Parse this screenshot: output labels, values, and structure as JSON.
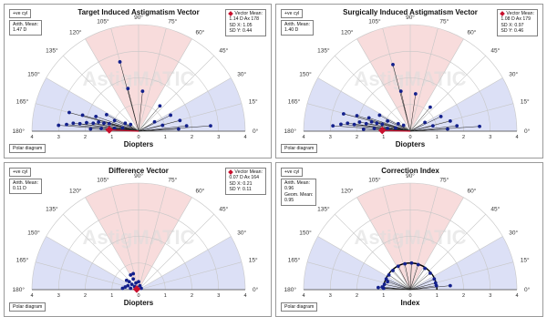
{
  "chart_data": [
    {
      "type": "scatter",
      "title": "Target Induced Astigmatism Vector",
      "xlabel": "Diopters",
      "polar_max": 4,
      "cyl_label": "+ve cyl",
      "left_box": [
        "Arith. Mean:",
        "1.47 D"
      ],
      "right_box": [
        "Vector Mean:",
        "1.14 D Ax 178",
        "SD X: 1.05",
        "SD Y: 0.44"
      ],
      "footer": "Polar diagram",
      "watermark": "AstigMATIC",
      "spokes": true,
      "mean": {
        "x": -1.1,
        "y": 0.05
      },
      "points": [
        {
          "x": -3.0,
          "y": 0.22
        },
        {
          "x": -2.7,
          "y": 0.25
        },
        {
          "x": -2.45,
          "y": 0.3
        },
        {
          "x": -2.2,
          "y": 0.28
        },
        {
          "x": -1.95,
          "y": 0.32
        },
        {
          "x": -1.7,
          "y": 0.3
        },
        {
          "x": -1.5,
          "y": 0.34
        },
        {
          "x": -1.3,
          "y": 0.3
        },
        {
          "x": -1.1,
          "y": 0.28
        },
        {
          "x": -2.6,
          "y": 0.7
        },
        {
          "x": -2.1,
          "y": 0.6
        },
        {
          "x": -1.6,
          "y": 0.55
        },
        {
          "x": -1.2,
          "y": 0.62
        },
        {
          "x": -0.9,
          "y": 0.4
        },
        {
          "x": -0.5,
          "y": 0.3
        },
        {
          "x": -0.3,
          "y": 0.25
        },
        {
          "x": -1.8,
          "y": 0.08
        },
        {
          "x": -1.4,
          "y": 0.1
        },
        {
          "x": -0.9,
          "y": 0.1
        },
        {
          "x": -0.6,
          "y": 0.12
        },
        {
          "x": -0.7,
          "y": 2.6
        },
        {
          "x": -0.4,
          "y": 1.6
        },
        {
          "x": 0.15,
          "y": 1.5
        },
        {
          "x": 0.8,
          "y": 0.95
        },
        {
          "x": 1.2,
          "y": 0.6
        },
        {
          "x": 1.55,
          "y": 0.4
        },
        {
          "x": 0.6,
          "y": 0.35
        },
        {
          "x": 0.9,
          "y": 0.22
        },
        {
          "x": 1.8,
          "y": 0.2
        },
        {
          "x": 2.7,
          "y": 0.2
        },
        {
          "x": 1.5,
          "y": 0.08
        }
      ]
    },
    {
      "type": "scatter",
      "title": "Surgically Induced Astigmatism Vector",
      "xlabel": "Diopters",
      "polar_max": 4,
      "cyl_label": "+ve cyl",
      "left_box": [
        "Arith. Mean:",
        "1.40 D"
      ],
      "right_box": [
        "Vector Mean:",
        "1.08 D Ax 179",
        "SD X: 0.97",
        "SD Y: 0.46"
      ],
      "footer": "Polar diagram",
      "watermark": "AstigMATIC",
      "spokes": true,
      "mean": {
        "x": -1.05,
        "y": 0.03
      },
      "points": [
        {
          "x": -2.9,
          "y": 0.2
        },
        {
          "x": -2.6,
          "y": 0.26
        },
        {
          "x": -2.35,
          "y": 0.3
        },
        {
          "x": -2.1,
          "y": 0.25
        },
        {
          "x": -1.9,
          "y": 0.34
        },
        {
          "x": -1.65,
          "y": 0.28
        },
        {
          "x": -1.45,
          "y": 0.35
        },
        {
          "x": -1.25,
          "y": 0.3
        },
        {
          "x": -1.05,
          "y": 0.26
        },
        {
          "x": -2.5,
          "y": 0.65
        },
        {
          "x": -2.0,
          "y": 0.58
        },
        {
          "x": -1.55,
          "y": 0.5
        },
        {
          "x": -1.15,
          "y": 0.6
        },
        {
          "x": -0.85,
          "y": 0.38
        },
        {
          "x": -0.45,
          "y": 0.28
        },
        {
          "x": -0.25,
          "y": 0.22
        },
        {
          "x": -1.75,
          "y": 0.07
        },
        {
          "x": -1.35,
          "y": 0.1
        },
        {
          "x": -0.85,
          "y": 0.1
        },
        {
          "x": -0.55,
          "y": 0.12
        },
        {
          "x": -0.65,
          "y": 2.5
        },
        {
          "x": -0.35,
          "y": 1.5
        },
        {
          "x": 0.2,
          "y": 1.4
        },
        {
          "x": 0.75,
          "y": 0.9
        },
        {
          "x": 1.15,
          "y": 0.55
        },
        {
          "x": 1.5,
          "y": 0.38
        },
        {
          "x": 0.55,
          "y": 0.33
        },
        {
          "x": 0.85,
          "y": 0.2
        },
        {
          "x": 1.75,
          "y": 0.2
        },
        {
          "x": 2.6,
          "y": 0.18
        },
        {
          "x": 1.4,
          "y": 0.08
        }
      ]
    },
    {
      "type": "scatter",
      "title": "Difference Vector",
      "xlabel": "Diopters",
      "polar_max": 4,
      "cyl_label": "+ve cyl",
      "left_box": [
        "Arith. Mean:",
        "0.11 D"
      ],
      "right_box": [
        "Vector Mean:",
        "0.07 D Ax 164",
        "SD X: 0.21",
        "SD Y: 0.11"
      ],
      "footer": "Polar diagram",
      "watermark": "AstigMATIC",
      "spokes": false,
      "mean": {
        "x": -0.07,
        "y": 0.02
      },
      "points": [
        {
          "x": -0.5,
          "y": 0.1
        },
        {
          "x": -0.4,
          "y": 0.15
        },
        {
          "x": -0.35,
          "y": 0.3
        },
        {
          "x": -0.3,
          "y": 0.05
        },
        {
          "x": -0.25,
          "y": 0.2
        },
        {
          "x": -0.2,
          "y": 0.4
        },
        {
          "x": -0.15,
          "y": 0.12
        },
        {
          "x": -0.1,
          "y": 0.25
        },
        {
          "x": -0.05,
          "y": 0.08
        },
        {
          "x": 0.05,
          "y": 0.15
        },
        {
          "x": 0.1,
          "y": 0.05
        },
        {
          "x": -0.45,
          "y": 0.35
        },
        {
          "x": -0.3,
          "y": 0.55
        },
        {
          "x": -0.6,
          "y": 0.05
        },
        {
          "x": 0.0,
          "y": 0.3
        },
        {
          "x": -0.2,
          "y": 0.6
        }
      ]
    },
    {
      "type": "scatter",
      "title": "Correction Index",
      "xlabel": "Index",
      "polar_max": 4,
      "cyl_label": "+ve cyl",
      "left_box": [
        "Arith. Mean:",
        "0.96",
        "Geom. Mean:",
        "0.95"
      ],
      "right_box": [],
      "footer": "Polar diagram",
      "watermark": "AstigMATIC",
      "spokes": true,
      "mean": null,
      "points": [
        {
          "x": -1.0,
          "y": 0.05
        },
        {
          "x": -0.97,
          "y": 0.2
        },
        {
          "x": -0.9,
          "y": 0.4
        },
        {
          "x": -0.8,
          "y": 0.55
        },
        {
          "x": -0.65,
          "y": 0.72
        },
        {
          "x": -0.45,
          "y": 0.88
        },
        {
          "x": -0.2,
          "y": 0.97
        },
        {
          "x": 0.05,
          "y": 1.0
        },
        {
          "x": 0.3,
          "y": 0.94
        },
        {
          "x": 0.55,
          "y": 0.8
        },
        {
          "x": 0.75,
          "y": 0.62
        },
        {
          "x": 0.9,
          "y": 0.4
        },
        {
          "x": 0.98,
          "y": 0.15
        },
        {
          "x": -1.05,
          "y": 0.1
        },
        {
          "x": -0.85,
          "y": 0.3
        },
        {
          "x": 0.95,
          "y": 0.25
        },
        {
          "x": 1.5,
          "y": 0.15
        },
        {
          "x": -1.2,
          "y": 0.08
        }
      ]
    }
  ],
  "colors": {
    "red_sector": "#f8dcdc",
    "blue_sector": "#dce0f6",
    "point": "#13208c",
    "mean": "#c8102e"
  }
}
